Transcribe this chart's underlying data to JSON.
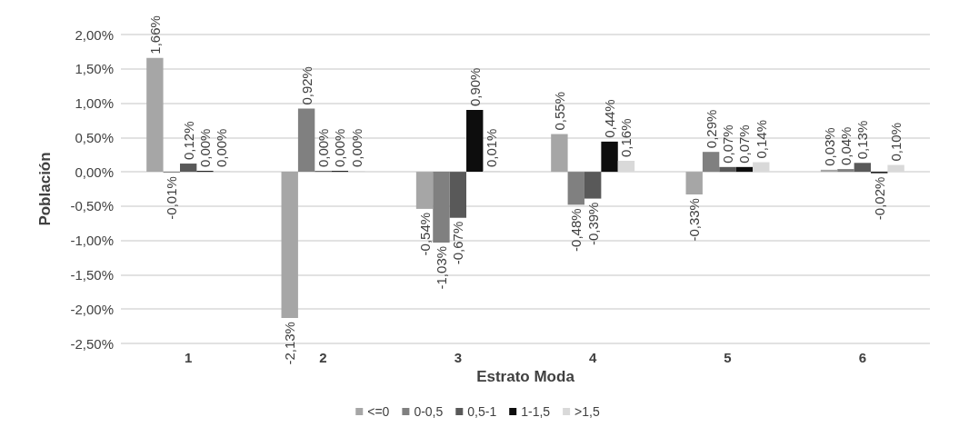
{
  "chart_data": {
    "type": "bar",
    "xlabel": "Estrato Moda",
    "ylabel": "Población",
    "categories": [
      "1",
      "2",
      "3",
      "4",
      "5",
      "6"
    ],
    "series": [
      {
        "name": "<=0",
        "color": "#a6a6a6",
        "values": [
          1.66,
          -2.13,
          -0.54,
          0.55,
          -0.33,
          0.03
        ],
        "value_labels": [
          "1,66%",
          "-2,13%",
          "-0,54%",
          "0,55%",
          "-0,33%",
          "0,03%"
        ]
      },
      {
        "name": "0-0,5",
        "color": "#808080",
        "values": [
          -0.01,
          0.92,
          -1.03,
          -0.48,
          0.29,
          0.04
        ],
        "value_labels": [
          "-0,01%",
          "0,92%",
          "-1,03%",
          "-0,48%",
          "0,29%",
          "0,04%"
        ]
      },
      {
        "name": "0,5-1",
        "color": "#595959",
        "values": [
          0.12,
          0.0,
          -0.67,
          -0.39,
          0.07,
          0.13
        ],
        "value_labels": [
          "0,12%",
          "0,00%",
          "-0,67%",
          "-0,39%",
          "0,07%",
          "0,13%"
        ]
      },
      {
        "name": "1-1,5",
        "color": "#0d0d0d",
        "values": [
          0.0,
          0.0,
          0.9,
          0.44,
          0.07,
          -0.02
        ],
        "value_labels": [
          "0,00%",
          "0,00%",
          "0,90%",
          "0,44%",
          "0,07%",
          "-0,02%"
        ]
      },
      {
        "name": ">1,5",
        "color": "#d9d9d9",
        "values": [
          0.0,
          0.0,
          0.01,
          0.16,
          0.14,
          0.1
        ],
        "value_labels": [
          "0,00%",
          "0,00%",
          "0,01%",
          "0,16%",
          "0,14%",
          "0,10%"
        ]
      }
    ],
    "ylim": [
      -2.5,
      2.0
    ],
    "yticks": [
      {
        "value": -2.5,
        "label": "-2,50%"
      },
      {
        "value": -2.0,
        "label": "-2,00%"
      },
      {
        "value": -1.5,
        "label": "-1,50%"
      },
      {
        "value": -1.0,
        "label": "-1,00%"
      },
      {
        "value": -0.5,
        "label": "-0,50%"
      },
      {
        "value": 0.0,
        "label": "0,00%"
      },
      {
        "value": 0.5,
        "label": "0,50%"
      },
      {
        "value": 1.0,
        "label": "1,00%"
      },
      {
        "value": 1.5,
        "label": "1,50%"
      },
      {
        "value": 2.0,
        "label": "2,00%"
      }
    ],
    "grid": "y",
    "legend": "bottom"
  }
}
